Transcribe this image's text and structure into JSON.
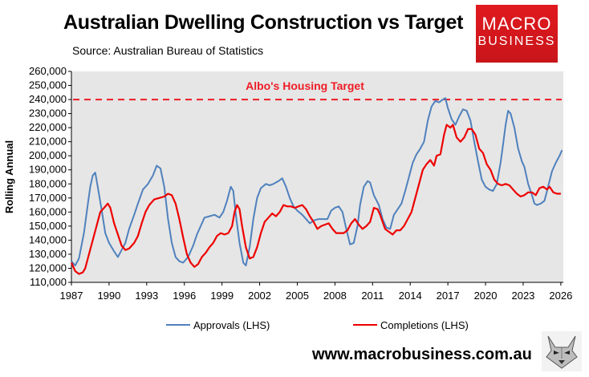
{
  "header": {
    "title": "Australian Dwelling Construction vs Target",
    "subtitle": "Source: Australian Bureau of Statistics"
  },
  "logo": {
    "line1": "MACRO",
    "line2": "BUSINESS",
    "color": "#e0191e"
  },
  "footer": {
    "url": "www.macrobusiness.com.au",
    "mascot_icon": "wolf-icon"
  },
  "chart_data": {
    "type": "line",
    "title": "Australian Dwelling Construction vs Target",
    "ylabel": "Rolling Annual",
    "xlabel": "",
    "ylim": [
      110000,
      260000
    ],
    "xlim": [
      1987,
      2026.2
    ],
    "y_ticks": [
      110000,
      120000,
      130000,
      140000,
      150000,
      160000,
      170000,
      180000,
      190000,
      200000,
      210000,
      220000,
      230000,
      240000,
      250000,
      260000
    ],
    "y_tick_labels": [
      "110,000",
      "120,000",
      "130,000",
      "140,000",
      "150,000",
      "160,000",
      "170,000",
      "180,000",
      "190,000",
      "200,000",
      "210,000",
      "220,000",
      "230,000",
      "240,000",
      "250,000",
      "260,000"
    ],
    "x_ticks": [
      1987,
      1990,
      1993,
      1996,
      1999,
      2002,
      2005,
      2008,
      2011,
      2014,
      2017,
      2020,
      2023,
      2026
    ],
    "x_tick_labels": [
      "1987",
      "1990",
      "1993",
      "1996",
      "1999",
      "2002",
      "2005",
      "2008",
      "2011",
      "2014",
      "2017",
      "2020",
      "2023",
      "2026"
    ],
    "grid": false,
    "plot_background": "#e6e6e6",
    "legend_position": "bottom",
    "annotations": [
      {
        "text": "Albo's Housing Target",
        "y": 240000,
        "color": "#ee1c25",
        "style": "dashed"
      }
    ],
    "series": [
      {
        "name": "Approvals (LHS)",
        "color": "#4f81bd",
        "points": [
          [
            1987.0,
            125000
          ],
          [
            1987.3,
            122000
          ],
          [
            1987.6,
            127000
          ],
          [
            1988.0,
            145000
          ],
          [
            1988.3,
            165000
          ],
          [
            1988.5,
            178000
          ],
          [
            1988.7,
            186000
          ],
          [
            1988.9,
            188000
          ],
          [
            1989.1,
            178000
          ],
          [
            1989.4,
            162000
          ],
          [
            1989.7,
            145000
          ],
          [
            1990.0,
            138000
          ],
          [
            1990.4,
            132000
          ],
          [
            1990.7,
            128000
          ],
          [
            1991.0,
            133000
          ],
          [
            1991.3,
            138000
          ],
          [
            1991.6,
            148000
          ],
          [
            1992.0,
            158000
          ],
          [
            1992.3,
            166000
          ],
          [
            1992.7,
            176000
          ],
          [
            1993.1,
            180000
          ],
          [
            1993.5,
            186000
          ],
          [
            1993.8,
            193000
          ],
          [
            1994.1,
            191000
          ],
          [
            1994.4,
            178000
          ],
          [
            1994.7,
            155000
          ],
          [
            1995.0,
            138000
          ],
          [
            1995.3,
            128000
          ],
          [
            1995.6,
            125000
          ],
          [
            1995.9,
            124000
          ],
          [
            1996.3,
            128000
          ],
          [
            1996.7,
            136000
          ],
          [
            1997.0,
            144000
          ],
          [
            1997.3,
            150000
          ],
          [
            1997.6,
            156000
          ],
          [
            1998.0,
            157000
          ],
          [
            1998.4,
            158000
          ],
          [
            1998.8,
            156000
          ],
          [
            1999.1,
            160000
          ],
          [
            1999.4,
            168000
          ],
          [
            1999.7,
            178000
          ],
          [
            1999.9,
            175000
          ],
          [
            2000.1,
            158000
          ],
          [
            2000.4,
            138000
          ],
          [
            2000.7,
            124000
          ],
          [
            2000.9,
            122000
          ],
          [
            2001.2,
            135000
          ],
          [
            2001.5,
            155000
          ],
          [
            2001.8,
            170000
          ],
          [
            2002.1,
            177000
          ],
          [
            2002.5,
            180000
          ],
          [
            2002.8,
            179000
          ],
          [
            2003.1,
            180000
          ],
          [
            2003.5,
            182000
          ],
          [
            2003.8,
            184000
          ],
          [
            2004.1,
            178000
          ],
          [
            2004.4,
            170000
          ],
          [
            2004.7,
            164000
          ],
          [
            2005.0,
            161000
          ],
          [
            2005.4,
            158000
          ],
          [
            2005.7,
            155000
          ],
          [
            2006.0,
            152000
          ],
          [
            2006.3,
            154000
          ],
          [
            2006.7,
            155000
          ],
          [
            2007.0,
            155000
          ],
          [
            2007.4,
            155000
          ],
          [
            2007.7,
            161000
          ],
          [
            2008.0,
            163000
          ],
          [
            2008.3,
            164000
          ],
          [
            2008.6,
            160000
          ],
          [
            2008.9,
            148000
          ],
          [
            2009.2,
            137000
          ],
          [
            2009.5,
            138000
          ],
          [
            2009.8,
            150000
          ],
          [
            2010.0,
            165000
          ],
          [
            2010.3,
            178000
          ],
          [
            2010.6,
            182000
          ],
          [
            2010.8,
            181000
          ],
          [
            2011.1,
            172000
          ],
          [
            2011.5,
            165000
          ],
          [
            2011.8,
            155000
          ],
          [
            2012.1,
            149000
          ],
          [
            2012.4,
            148000
          ],
          [
            2012.7,
            158000
          ],
          [
            2013.0,
            162000
          ],
          [
            2013.3,
            166000
          ],
          [
            2013.6,
            175000
          ],
          [
            2013.9,
            185000
          ],
          [
            2014.2,
            195000
          ],
          [
            2014.5,
            201000
          ],
          [
            2014.8,
            205000
          ],
          [
            2015.1,
            210000
          ],
          [
            2015.4,
            225000
          ],
          [
            2015.7,
            235000
          ],
          [
            2016.0,
            239000
          ],
          [
            2016.3,
            238000
          ],
          [
            2016.6,
            240000
          ],
          [
            2016.8,
            241000
          ],
          [
            2017.0,
            234000
          ],
          [
            2017.3,
            226000
          ],
          [
            2017.6,
            222000
          ],
          [
            2017.9,
            228000
          ],
          [
            2018.2,
            233000
          ],
          [
            2018.5,
            232000
          ],
          [
            2018.8,
            225000
          ],
          [
            2019.1,
            210000
          ],
          [
            2019.4,
            196000
          ],
          [
            2019.7,
            183000
          ],
          [
            2020.0,
            178000
          ],
          [
            2020.3,
            176000
          ],
          [
            2020.6,
            175000
          ],
          [
            2020.9,
            180000
          ],
          [
            2021.2,
            195000
          ],
          [
            2021.4,
            208000
          ],
          [
            2021.6,
            222000
          ],
          [
            2021.8,
            232000
          ],
          [
            2022.0,
            230000
          ],
          [
            2022.3,
            220000
          ],
          [
            2022.6,
            205000
          ],
          [
            2022.9,
            196000
          ],
          [
            2023.1,
            192000
          ],
          [
            2023.4,
            180000
          ],
          [
            2023.7,
            172000
          ],
          [
            2023.9,
            166000
          ],
          [
            2024.1,
            165000
          ],
          [
            2024.4,
            166000
          ],
          [
            2024.7,
            168000
          ],
          [
            2024.9,
            175000
          ],
          [
            2025.1,
            182000
          ],
          [
            2025.3,
            189000
          ],
          [
            2025.6,
            195000
          ],
          [
            2025.9,
            200000
          ],
          [
            2026.1,
            204000
          ]
        ]
      },
      {
        "name": "Completions (LHS)",
        "color": "#ee0000",
        "points": [
          [
            1987.0,
            124000
          ],
          [
            1987.3,
            118000
          ],
          [
            1987.6,
            116000
          ],
          [
            1987.9,
            117000
          ],
          [
            1988.1,
            120000
          ],
          [
            1988.4,
            130000
          ],
          [
            1988.7,
            140000
          ],
          [
            1989.0,
            150000
          ],
          [
            1989.3,
            160000
          ],
          [
            1989.6,
            163000
          ],
          [
            1989.9,
            166000
          ],
          [
            1990.1,
            163000
          ],
          [
            1990.4,
            152000
          ],
          [
            1990.7,
            144000
          ],
          [
            1991.0,
            136000
          ],
          [
            1991.3,
            133000
          ],
          [
            1991.6,
            134000
          ],
          [
            1992.0,
            138000
          ],
          [
            1992.3,
            143000
          ],
          [
            1992.6,
            152000
          ],
          [
            1992.9,
            160000
          ],
          [
            1993.2,
            165000
          ],
          [
            1993.6,
            169000
          ],
          [
            1994.0,
            170000
          ],
          [
            1994.4,
            171000
          ],
          [
            1994.7,
            173000
          ],
          [
            1995.0,
            172000
          ],
          [
            1995.3,
            166000
          ],
          [
            1995.6,
            155000
          ],
          [
            1995.9,
            142000
          ],
          [
            1996.2,
            130000
          ],
          [
            1996.5,
            124000
          ],
          [
            1996.8,
            121000
          ],
          [
            1997.1,
            123000
          ],
          [
            1997.4,
            128000
          ],
          [
            1997.7,
            131000
          ],
          [
            1998.0,
            135000
          ],
          [
            1998.3,
            138000
          ],
          [
            1998.6,
            143000
          ],
          [
            1998.9,
            145000
          ],
          [
            1999.2,
            144000
          ],
          [
            1999.5,
            145000
          ],
          [
            1999.8,
            150000
          ],
          [
            2000.0,
            160000
          ],
          [
            2000.2,
            165000
          ],
          [
            2000.4,
            162000
          ],
          [
            2000.6,
            150000
          ],
          [
            2000.9,
            135000
          ],
          [
            2001.2,
            127000
          ],
          [
            2001.5,
            128000
          ],
          [
            2001.8,
            135000
          ],
          [
            2002.1,
            145000
          ],
          [
            2002.4,
            153000
          ],
          [
            2002.7,
            156000
          ],
          [
            2003.0,
            159000
          ],
          [
            2003.3,
            157000
          ],
          [
            2003.6,
            160000
          ],
          [
            2003.9,
            165000
          ],
          [
            2004.2,
            164000
          ],
          [
            2004.5,
            164000
          ],
          [
            2004.8,
            163000
          ],
          [
            2005.1,
            164000
          ],
          [
            2005.4,
            165000
          ],
          [
            2005.7,
            162000
          ],
          [
            2006.0,
            157000
          ],
          [
            2006.3,
            153000
          ],
          [
            2006.6,
            148000
          ],
          [
            2006.9,
            150000
          ],
          [
            2007.2,
            151000
          ],
          [
            2007.5,
            152000
          ],
          [
            2007.8,
            148000
          ],
          [
            2008.1,
            145000
          ],
          [
            2008.4,
            145000
          ],
          [
            2008.7,
            145000
          ],
          [
            2009.0,
            147000
          ],
          [
            2009.3,
            152000
          ],
          [
            2009.6,
            155000
          ],
          [
            2009.9,
            151000
          ],
          [
            2010.2,
            148000
          ],
          [
            2010.5,
            150000
          ],
          [
            2010.8,
            153000
          ],
          [
            2011.1,
            163000
          ],
          [
            2011.4,
            162000
          ],
          [
            2011.6,
            158000
          ],
          [
            2011.8,
            153000
          ],
          [
            2012.0,
            148000
          ],
          [
            2012.3,
            146000
          ],
          [
            2012.6,
            144000
          ],
          [
            2012.9,
            147000
          ],
          [
            2013.2,
            147000
          ],
          [
            2013.5,
            150000
          ],
          [
            2013.8,
            155000
          ],
          [
            2014.1,
            160000
          ],
          [
            2014.4,
            170000
          ],
          [
            2014.7,
            180000
          ],
          [
            2015.0,
            190000
          ],
          [
            2015.3,
            194000
          ],
          [
            2015.6,
            197000
          ],
          [
            2015.9,
            193000
          ],
          [
            2016.1,
            200000
          ],
          [
            2016.4,
            201000
          ],
          [
            2016.7,
            215000
          ],
          [
            2016.9,
            222000
          ],
          [
            2017.2,
            220000
          ],
          [
            2017.4,
            222000
          ],
          [
            2017.7,
            213000
          ],
          [
            2018.0,
            210000
          ],
          [
            2018.3,
            213000
          ],
          [
            2018.6,
            219000
          ],
          [
            2018.9,
            219000
          ],
          [
            2019.2,
            215000
          ],
          [
            2019.5,
            205000
          ],
          [
            2019.8,
            202000
          ],
          [
            2020.1,
            194000
          ],
          [
            2020.4,
            190000
          ],
          [
            2020.7,
            183000
          ],
          [
            2021.0,
            180000
          ],
          [
            2021.3,
            179000
          ],
          [
            2021.6,
            180000
          ],
          [
            2021.9,
            179000
          ],
          [
            2022.2,
            176000
          ],
          [
            2022.5,
            173000
          ],
          [
            2022.8,
            171000
          ],
          [
            2023.1,
            172000
          ],
          [
            2023.4,
            174000
          ],
          [
            2023.7,
            174000
          ],
          [
            2024.0,
            172000
          ],
          [
            2024.3,
            177000
          ],
          [
            2024.6,
            178000
          ],
          [
            2024.9,
            176000
          ],
          [
            2025.1,
            178000
          ],
          [
            2025.4,
            174000
          ],
          [
            2025.7,
            173000
          ],
          [
            2026.0,
            173000
          ]
        ]
      }
    ]
  }
}
